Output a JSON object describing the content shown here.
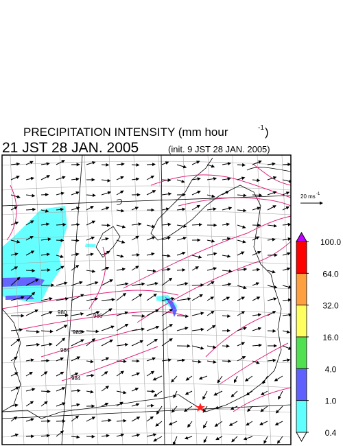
{
  "header": {
    "title": "PRECIPITATION INTENSITY (mm hour",
    "title_superscript": "-1",
    "title_close": ")",
    "valid_time": "21 JST 28 JAN. 2005",
    "init_time": "(init. 9 JST 28 JAN. 2005)"
  },
  "wind_reference": {
    "label": "20 ms",
    "superscript": "-1"
  },
  "isobar_labels": [
    "980",
    "982",
    "984",
    "986",
    "984"
  ],
  "colorbar": {
    "levels": [
      {
        "value": 100,
        "label": "100.0"
      },
      {
        "value": 64,
        "label": "64.0"
      },
      {
        "value": 32,
        "label": "32.0"
      },
      {
        "value": 16,
        "label": "16.0"
      },
      {
        "value": 4,
        "label": "4.0"
      },
      {
        "value": 1,
        "label": "1.0"
      },
      {
        "value": 0.4,
        "label": "0.4"
      }
    ],
    "band_colors": [
      "#ff0000",
      "#ffa040",
      "#ffff60",
      "#50e050",
      "#6060ff",
      "#60ffff"
    ],
    "over_color": "#c000ff",
    "under_color": "#ffffff"
  }
}
